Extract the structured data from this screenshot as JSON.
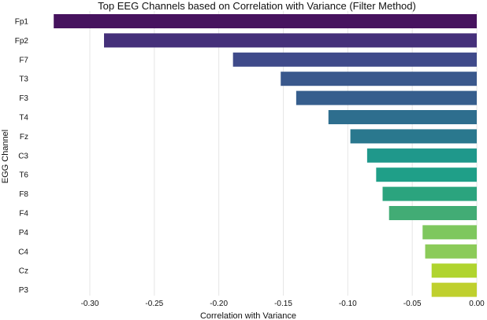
{
  "chart_data": {
    "type": "bar",
    "orientation": "horizontal",
    "title": "Top EEG Channels based on Correlation with Variance (Filter Method)",
    "xlabel": "Correlation with Variance",
    "ylabel": "EGG Channel",
    "categories": [
      "Fp1",
      "Fp2",
      "F7",
      "T3",
      "F3",
      "T4",
      "Fz",
      "C3",
      "T6",
      "F8",
      "F4",
      "P4",
      "C4",
      "Cz",
      "P3"
    ],
    "values": [
      -0.328,
      -0.289,
      -0.189,
      -0.152,
      -0.14,
      -0.115,
      -0.098,
      -0.085,
      -0.078,
      -0.073,
      -0.068,
      -0.042,
      -0.04,
      -0.035,
      -0.035
    ],
    "xlim": [
      -0.333,
      0.0
    ],
    "xticks": [
      "-0.30",
      "-0.25",
      "-0.20",
      "-0.15",
      "-0.10",
      "-0.05",
      "0.00"
    ],
    "xtick_values": [
      -0.3,
      -0.25,
      -0.2,
      -0.15,
      -0.1,
      -0.05,
      0.0
    ],
    "colors": [
      "#46135e",
      "#45307a",
      "#3f4a8a",
      "#3a588c",
      "#365e8d",
      "#2e6e8e",
      "#2a788e",
      "#1f988b",
      "#1f9f88",
      "#2ba47e",
      "#42ac75",
      "#7ec75e",
      "#8bcb59",
      "#b0d42f",
      "#bfd02e"
    ],
    "grid": true,
    "legend": "none"
  }
}
